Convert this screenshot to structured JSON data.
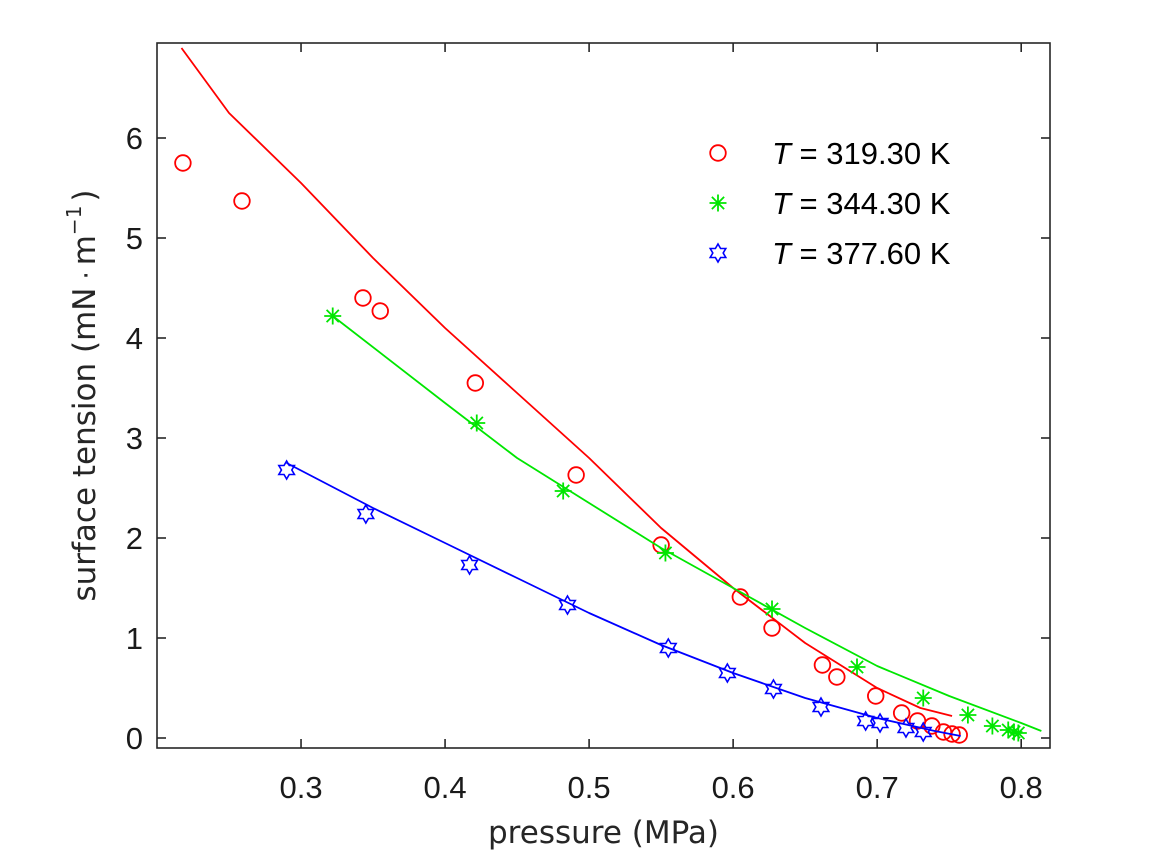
{
  "chart_data": {
    "type": "scatter",
    "xlabel": "pressure (MPa)",
    "ylabel_main": "surface tension (mN",
    "ylabel_dot": "·",
    "ylabel_unit": "m",
    "ylabel_exp": "−1",
    "ylabel_close": ")",
    "xlim": [
      0.2,
      0.82
    ],
    "ylim": [
      -0.1,
      6.95
    ],
    "xticks": [
      0.3,
      0.4,
      0.5,
      0.6,
      0.7,
      0.8
    ],
    "xtick_labels": [
      "0.3",
      "0.4",
      "0.5",
      "0.6",
      "0.7",
      "0.8"
    ],
    "yticks": [
      0,
      1,
      2,
      3,
      4,
      5,
      6
    ],
    "ytick_labels": [
      "0",
      "1",
      "2",
      "3",
      "4",
      "5",
      "6"
    ],
    "grid": false,
    "legend_position": "top-right",
    "series": [
      {
        "name": "319.30 K",
        "legend_prefix": "T",
        "legend_eq": " = ",
        "color": "#ff0000",
        "marker": "circle",
        "points": [
          [
            0.218,
            5.75
          ],
          [
            0.259,
            5.37
          ],
          [
            0.343,
            4.4
          ],
          [
            0.355,
            4.27
          ],
          [
            0.421,
            3.55
          ],
          [
            0.491,
            2.63
          ],
          [
            0.55,
            1.93
          ],
          [
            0.605,
            1.41
          ],
          [
            0.627,
            1.1
          ],
          [
            0.662,
            0.73
          ],
          [
            0.672,
            0.61
          ],
          [
            0.699,
            0.42
          ],
          [
            0.717,
            0.25
          ],
          [
            0.728,
            0.17
          ],
          [
            0.738,
            0.12
          ],
          [
            0.746,
            0.06
          ],
          [
            0.752,
            0.04
          ],
          [
            0.757,
            0.03
          ]
        ],
        "fit": [
          [
            0.217,
            6.9
          ],
          [
            0.25,
            6.25
          ],
          [
            0.3,
            5.55
          ],
          [
            0.35,
            4.8
          ],
          [
            0.4,
            4.1
          ],
          [
            0.45,
            3.45
          ],
          [
            0.5,
            2.8
          ],
          [
            0.55,
            2.1
          ],
          [
            0.6,
            1.5
          ],
          [
            0.65,
            0.95
          ],
          [
            0.7,
            0.5
          ],
          [
            0.73,
            0.3
          ],
          [
            0.752,
            0.22
          ]
        ]
      },
      {
        "name": "344.30 K",
        "legend_prefix": "T",
        "legend_eq": " = ",
        "color": "#00e600",
        "marker": "asterisk",
        "points": [
          [
            0.322,
            4.22
          ],
          [
            0.422,
            3.15
          ],
          [
            0.482,
            2.47
          ],
          [
            0.553,
            1.85
          ],
          [
            0.627,
            1.29
          ],
          [
            0.686,
            0.71
          ],
          [
            0.732,
            0.4
          ],
          [
            0.763,
            0.23
          ],
          [
            0.78,
            0.12
          ],
          [
            0.791,
            0.08
          ],
          [
            0.795,
            0.06
          ],
          [
            0.798,
            0.05
          ]
        ],
        "fit": [
          [
            0.322,
            4.22
          ],
          [
            0.4,
            3.35
          ],
          [
            0.45,
            2.8
          ],
          [
            0.5,
            2.35
          ],
          [
            0.55,
            1.9
          ],
          [
            0.6,
            1.5
          ],
          [
            0.65,
            1.1
          ],
          [
            0.7,
            0.72
          ],
          [
            0.75,
            0.42
          ],
          [
            0.8,
            0.15
          ],
          [
            0.814,
            0.07
          ]
        ]
      },
      {
        "name": "377.60 K",
        "legend_prefix": "T",
        "legend_eq": " = ",
        "color": "#0000ff",
        "marker": "hexagram",
        "points": [
          [
            0.29,
            2.68
          ],
          [
            0.345,
            2.24
          ],
          [
            0.417,
            1.73
          ],
          [
            0.485,
            1.33
          ],
          [
            0.555,
            0.9
          ],
          [
            0.596,
            0.65
          ],
          [
            0.628,
            0.49
          ],
          [
            0.661,
            0.31
          ],
          [
            0.692,
            0.17
          ],
          [
            0.702,
            0.15
          ],
          [
            0.72,
            0.1
          ],
          [
            0.732,
            0.06
          ]
        ],
        "fit": [
          [
            0.29,
            2.75
          ],
          [
            0.35,
            2.3
          ],
          [
            0.4,
            1.95
          ],
          [
            0.45,
            1.6
          ],
          [
            0.5,
            1.25
          ],
          [
            0.55,
            0.93
          ],
          [
            0.6,
            0.65
          ],
          [
            0.65,
            0.4
          ],
          [
            0.7,
            0.2
          ],
          [
            0.74,
            0.07
          ],
          [
            0.758,
            0.02
          ]
        ]
      }
    ]
  }
}
